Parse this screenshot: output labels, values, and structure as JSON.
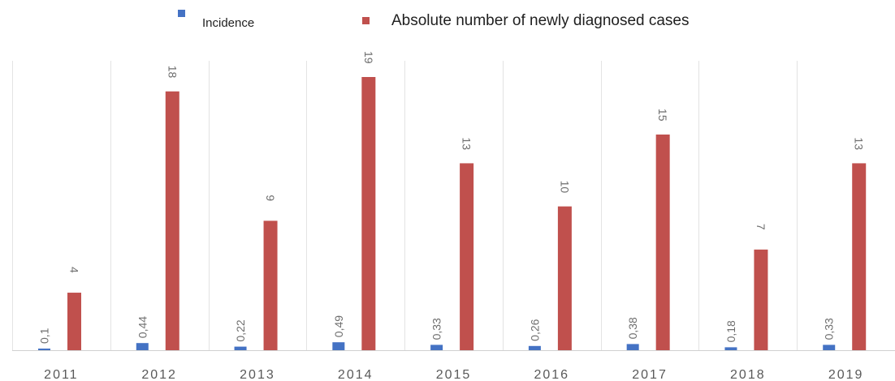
{
  "chart_data": {
    "type": "bar",
    "categories": [
      "2011",
      "2012",
      "2013",
      "2014",
      "2015",
      "2016",
      "2017",
      "2018",
      "2019"
    ],
    "series": [
      {
        "name": "Incidence",
        "values": [
          0.1,
          0.44,
          0.22,
          0.49,
          0.33,
          0.26,
          0.38,
          0.18,
          0.33
        ],
        "labels": [
          "0,1",
          "0,44",
          "0,22",
          "0,49",
          "0,33",
          "0,26",
          "0,38",
          "0,18",
          "0,33"
        ],
        "color": "#4472c4"
      },
      {
        "name": "Absolute number of newly diagnosed cases",
        "values": [
          4,
          18,
          9,
          19,
          13,
          10,
          15,
          7,
          13
        ],
        "labels": [
          "4",
          "18",
          "9",
          "19",
          "13",
          "10",
          "15",
          "7",
          "13"
        ],
        "color": "#c0504d"
      }
    ],
    "ylim": [
      0,
      19
    ],
    "grid": true,
    "legend_position": "top",
    "data_label_rotation": "vertical"
  }
}
